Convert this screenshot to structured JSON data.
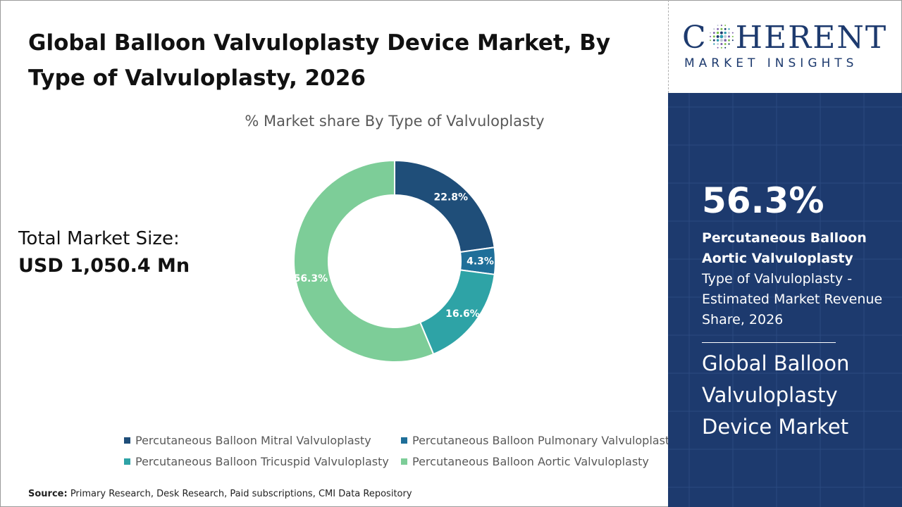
{
  "header": {
    "title": "Global Balloon Valvuloplasty Device Market, By Type of Valvuloplasty, 2026"
  },
  "total_market": {
    "label": "Total Market Size:",
    "value": "USD 1,050.4 Mn"
  },
  "source": {
    "label": "Source:",
    "text": " Primary Research, Desk Research, Paid subscriptions, CMI Data Repository"
  },
  "logo": {
    "main_left": "C",
    "main_right": "HERENT",
    "sub": "MARKET INSIGHTS"
  },
  "highlight": {
    "percent": "56.3%",
    "segment": "Percutaneous Balloon Aortic Valvuloplasty",
    "description": "Type of Valvuloplasty - Estimated Market Revenue Share, 2026",
    "market_name": "Global Balloon Valvuloplasty Device Market"
  },
  "colors": {
    "brand_navy": "#1d3a6e"
  },
  "chart_data": {
    "type": "pie",
    "title": "% Market share By Type of Valvuloplasty",
    "donut": true,
    "legend_position": "bottom",
    "categories": [
      "Percutaneous Balloon Mitral Valvuloplasty",
      "Percutaneous Balloon Pulmonary Valvuloplasty",
      "Percutaneous Balloon Tricuspid Valvuloplasty",
      "Percutaneous Balloon Aortic Valvuloplasty"
    ],
    "values": [
      22.8,
      4.3,
      16.6,
      56.3
    ],
    "data_labels": [
      "22.8%",
      "4.3%",
      "16.6%",
      "56.3%"
    ],
    "colors": [
      "#1f4e79",
      "#1f6f99",
      "#2ea3a6",
      "#7dcd98"
    ]
  }
}
